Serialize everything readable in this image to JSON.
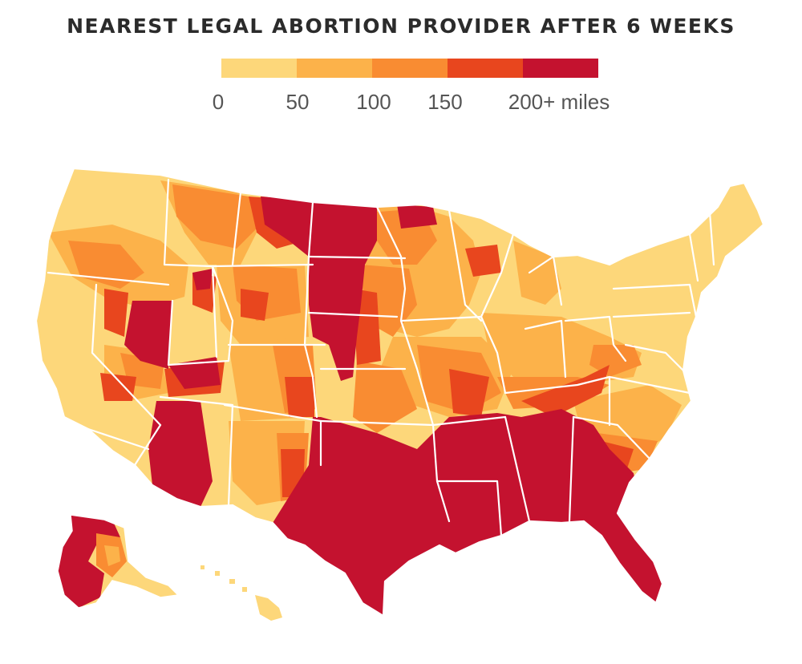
{
  "title": "NEAREST LEGAL ABORTION PROVIDER AFTER 6 WEEKS",
  "legend": {
    "colors": [
      "#fdd77a",
      "#fcb24a",
      "#f98c32",
      "#e8461e",
      "#c4122f"
    ],
    "labels": [
      "0",
      "50",
      "100",
      "150",
      "200+ miles"
    ],
    "bins": [
      [
        0,
        50
      ],
      [
        50,
        100
      ],
      [
        100,
        150
      ],
      [
        150,
        200
      ],
      [
        200,
        null
      ]
    ],
    "unit": "miles"
  },
  "colors": {
    "border": "#ffffff",
    "background": "#ffffff"
  }
}
